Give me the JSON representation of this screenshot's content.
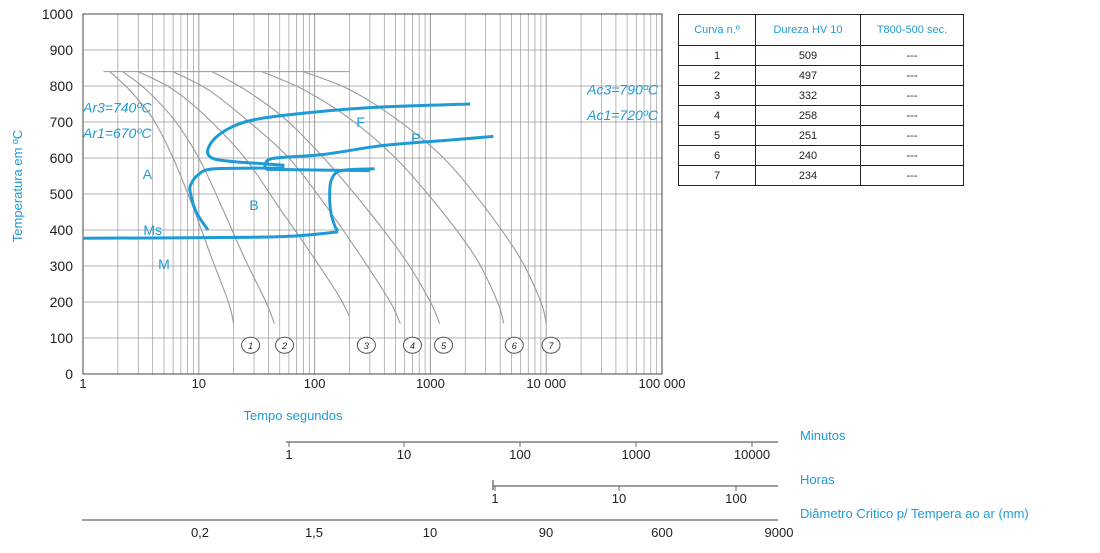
{
  "chart_data": {
    "type": "line",
    "title": "",
    "xlabel": "Tempo segundos",
    "ylabel": "Temperatura em ºC",
    "x_scale": "log",
    "xlim": [
      1,
      100000
    ],
    "ylim": [
      0,
      1000
    ],
    "x_ticks": [
      1,
      10,
      100,
      1000,
      10000,
      100000
    ],
    "x_tick_labels": [
      "1",
      "10",
      "100",
      "1000",
      "10 000",
      "100 000"
    ],
    "y_ticks": [
      0,
      100,
      200,
      300,
      400,
      500,
      600,
      700,
      800,
      900,
      1000
    ],
    "grid": true,
    "accent_color": "#1e9bd7",
    "curve_color": "#9a9a9a",
    "labels": {
      "ar3": "Ar3=740ºC",
      "ar1": "Ar1=670ºC",
      "ac3": "Ac3=790ºC",
      "ac1": "Ac1=720ºC",
      "A": "A",
      "B": "B",
      "F": "F",
      "P": "P",
      "Ms": "Ms",
      "M": "M"
    },
    "transformation_lines": [
      {
        "name": "F",
        "points": [
          [
            2200,
            750
          ],
          [
            300,
            740
          ],
          [
            60,
            720
          ],
          [
            25,
            700
          ],
          [
            15,
            665
          ],
          [
            12,
            625
          ],
          [
            13,
            600
          ],
          [
            20,
            590
          ],
          [
            55,
            580
          ]
        ]
      },
      {
        "name": "P",
        "points": [
          [
            3500,
            660
          ],
          [
            1500,
            650
          ],
          [
            400,
            635
          ],
          [
            120,
            610
          ],
          [
            55,
            602
          ],
          [
            40,
            595
          ],
          [
            38,
            572
          ],
          [
            50,
            568
          ],
          [
            300,
            565
          ]
        ]
      },
      {
        "name": "B",
        "points": [
          [
            330,
            570
          ],
          [
            170,
            565
          ],
          [
            140,
            540
          ],
          [
            135,
            500
          ],
          [
            138,
            450
          ],
          [
            150,
            410
          ],
          [
            160,
            398
          ]
        ]
      },
      {
        "name": "B-front",
        "points": [
          [
            55,
            572
          ],
          [
            14,
            570
          ],
          [
            10,
            555
          ],
          [
            8.5,
            525
          ],
          [
            8.5,
            500
          ],
          [
            9.5,
            450
          ],
          [
            12,
            400
          ]
        ]
      },
      {
        "name": "Ms",
        "points": [
          [
            1,
            377
          ],
          [
            30,
            380
          ],
          [
            80,
            385
          ],
          [
            160,
            395
          ]
        ]
      }
    ],
    "cooling_curves": [
      {
        "name": "1",
        "points": [
          [
            1.7,
            840
          ],
          [
            2.5,
            790
          ],
          [
            4,
            710
          ],
          [
            6,
            600
          ],
          [
            9,
            460
          ],
          [
            13,
            320
          ],
          [
            18,
            200
          ],
          [
            20,
            140
          ]
        ]
      },
      {
        "name": "2",
        "points": [
          [
            2.2,
            840
          ],
          [
            3.5,
            790
          ],
          [
            6,
            710
          ],
          [
            10,
            600
          ],
          [
            16,
            460
          ],
          [
            25,
            320
          ],
          [
            38,
            200
          ],
          [
            45,
            140
          ]
        ]
      },
      {
        "name": "3",
        "points": [
          [
            3,
            840
          ],
          [
            6,
            790
          ],
          [
            12,
            710
          ],
          [
            25,
            600
          ],
          [
            50,
            460
          ],
          [
            100,
            320
          ],
          [
            160,
            220
          ],
          [
            200,
            160
          ]
        ]
      },
      {
        "name": "4",
        "points": [
          [
            6,
            840
          ],
          [
            12,
            790
          ],
          [
            25,
            710
          ],
          [
            60,
            600
          ],
          [
            130,
            460
          ],
          [
            260,
            320
          ],
          [
            450,
            200
          ],
          [
            550,
            140
          ]
        ]
      },
      {
        "name": "5",
        "points": [
          [
            13,
            840
          ],
          [
            25,
            790
          ],
          [
            55,
            710
          ],
          [
            120,
            600
          ],
          [
            280,
            460
          ],
          [
            600,
            320
          ],
          [
            1000,
            200
          ],
          [
            1200,
            140
          ]
        ]
      },
      {
        "name": "6",
        "points": [
          [
            35,
            840
          ],
          [
            80,
            790
          ],
          [
            200,
            710
          ],
          [
            500,
            600
          ],
          [
            1200,
            460
          ],
          [
            2500,
            320
          ],
          [
            3800,
            200
          ],
          [
            4300,
            140
          ]
        ]
      },
      {
        "name": "7",
        "points": [
          [
            80,
            840
          ],
          [
            200,
            790
          ],
          [
            500,
            710
          ],
          [
            1300,
            600
          ],
          [
            3000,
            460
          ],
          [
            6000,
            320
          ],
          [
            9000,
            200
          ],
          [
            10000,
            140
          ]
        ]
      }
    ],
    "curve_markers": [
      {
        "label": "1",
        "x": 28,
        "y": 80
      },
      {
        "label": "2",
        "x": 55,
        "y": 80
      },
      {
        "label": "3",
        "x": 280,
        "y": 80
      },
      {
        "label": "4",
        "x": 700,
        "y": 80
      },
      {
        "label": "5",
        "x": 1300,
        "y": 80
      },
      {
        "label": "6",
        "x": 5300,
        "y": 80
      },
      {
        "label": "7",
        "x": 11000,
        "y": 80
      }
    ],
    "secondary_scales": [
      {
        "name": "Minutos",
        "ticks": [
          "1",
          "10",
          "100",
          "1000",
          "10000"
        ]
      },
      {
        "name": "Horas",
        "ticks": [
          "1",
          "10",
          "100"
        ]
      },
      {
        "name": "Diâmetro Critico p/ Tempera ao ar (mm)",
        "ticks": [
          "0,2",
          "1,5",
          "10",
          "90",
          "600",
          "9000"
        ]
      }
    ],
    "table": {
      "headers": [
        "Curva n.º",
        "Dureza HV 10",
        "T800-500 sec."
      ],
      "rows": [
        [
          "1",
          "509",
          "---"
        ],
        [
          "2",
          "497",
          "---"
        ],
        [
          "3",
          "332",
          "---"
        ],
        [
          "4",
          "258",
          "---"
        ],
        [
          "5",
          "251",
          "---"
        ],
        [
          "6",
          "240",
          "---"
        ],
        [
          "7",
          "234",
          "---"
        ]
      ]
    }
  }
}
